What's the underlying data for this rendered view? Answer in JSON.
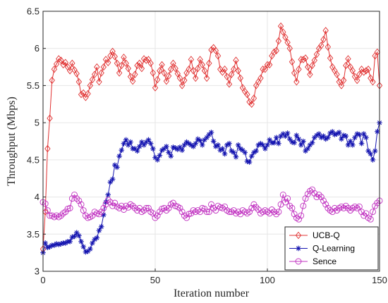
{
  "chart_data": {
    "type": "line",
    "title": "",
    "xlabel": "Iteration number",
    "ylabel": "Throughput (Mbps)",
    "xlim": [
      0,
      150
    ],
    "ylim": [
      3,
      6.5
    ],
    "xticks": [
      "0",
      "50",
      "100",
      "150"
    ],
    "yticks": [
      "3",
      "3.5",
      "4",
      "4.5",
      "5",
      "5.5",
      "6",
      "6.5"
    ],
    "legend_position": "bottom-right",
    "grid": true,
    "x": [
      0,
      1,
      2,
      3,
      4,
      5,
      6,
      7,
      8,
      9,
      10,
      11,
      12,
      13,
      14,
      15,
      16,
      17,
      18,
      19,
      20,
      21,
      22,
      23,
      24,
      25,
      26,
      27,
      28,
      29,
      30,
      31,
      32,
      33,
      34,
      35,
      36,
      37,
      38,
      39,
      40,
      41,
      42,
      43,
      44,
      45,
      46,
      47,
      48,
      49,
      50,
      51,
      52,
      53,
      54,
      55,
      56,
      57,
      58,
      59,
      60,
      61,
      62,
      63,
      64,
      65,
      66,
      67,
      68,
      69,
      70,
      71,
      72,
      73,
      74,
      75,
      76,
      77,
      78,
      79,
      80,
      81,
      82,
      83,
      84,
      85,
      86,
      87,
      88,
      89,
      90,
      91,
      92,
      93,
      94,
      95,
      96,
      97,
      98,
      99,
      100,
      101,
      102,
      103,
      104,
      105,
      106,
      107,
      108,
      109,
      110,
      111,
      112,
      113,
      114,
      115,
      116,
      117,
      118,
      119,
      120,
      121,
      122,
      123,
      124,
      125,
      126,
      127,
      128,
      129,
      130,
      131,
      132,
      133,
      134,
      135,
      136,
      137,
      138,
      139,
      140,
      141,
      142,
      143,
      144,
      145,
      146,
      147,
      148,
      149,
      150
    ],
    "series": [
      {
        "name": "UCB-Q",
        "color": "#e03030",
        "marker": "diamond",
        "values": [
          3.3,
          3.8,
          4.65,
          5.06,
          5.57,
          5.72,
          5.79,
          5.86,
          5.84,
          5.78,
          5.81,
          5.75,
          5.7,
          5.8,
          5.71,
          5.66,
          5.55,
          5.38,
          5.4,
          5.34,
          5.39,
          5.5,
          5.58,
          5.65,
          5.75,
          5.55,
          5.67,
          5.75,
          5.85,
          5.81,
          5.9,
          5.96,
          5.89,
          5.8,
          5.67,
          5.77,
          5.88,
          5.8,
          5.73,
          5.62,
          5.56,
          5.65,
          5.77,
          5.8,
          5.73,
          5.86,
          5.84,
          5.85,
          5.8,
          5.67,
          5.47,
          5.58,
          5.7,
          5.78,
          5.67,
          5.56,
          5.63,
          5.72,
          5.8,
          5.73,
          5.66,
          5.6,
          5.5,
          5.57,
          5.67,
          5.72,
          5.85,
          5.7,
          5.6,
          5.73,
          5.85,
          5.78,
          5.7,
          5.6,
          5.8,
          5.98,
          6.01,
          5.97,
          5.9,
          5.72,
          5.68,
          5.72,
          5.62,
          5.52,
          5.65,
          5.72,
          5.84,
          5.7,
          5.6,
          5.47,
          5.42,
          5.38,
          5.28,
          5.25,
          5.33,
          5.5,
          5.55,
          5.6,
          5.72,
          5.72,
          5.78,
          5.78,
          5.9,
          5.95,
          5.97,
          6.1,
          6.3,
          6.22,
          6.15,
          6.08,
          6.0,
          5.82,
          5.67,
          5.55,
          5.72,
          5.85,
          5.85,
          5.87,
          5.75,
          5.65,
          5.77,
          5.84,
          5.92,
          6.0,
          6.04,
          6.12,
          6.24,
          6.02,
          5.87,
          5.75,
          5.7,
          5.65,
          5.55,
          5.5,
          5.57,
          5.77,
          5.86,
          5.75,
          5.7,
          5.62,
          5.57,
          5.65,
          5.72,
          5.68,
          5.7,
          5.72,
          5.6,
          5.55,
          5.9,
          5.95,
          5.5
        ]
      },
      {
        "name": "Q-Learning",
        "color": "#1515b0",
        "marker": "star",
        "values": [
          3.25,
          3.38,
          3.32,
          3.33,
          3.35,
          3.35,
          3.37,
          3.36,
          3.37,
          3.38,
          3.38,
          3.4,
          3.4,
          3.46,
          3.47,
          3.52,
          3.48,
          3.4,
          3.33,
          3.26,
          3.27,
          3.3,
          3.38,
          3.43,
          3.45,
          3.55,
          3.6,
          3.76,
          3.93,
          4.03,
          4.2,
          4.24,
          4.43,
          4.4,
          4.55,
          4.63,
          4.72,
          4.77,
          4.7,
          4.74,
          4.65,
          4.65,
          4.62,
          4.68,
          4.74,
          4.7,
          4.74,
          4.77,
          4.72,
          4.65,
          4.53,
          4.5,
          4.56,
          4.63,
          4.65,
          4.68,
          4.6,
          4.55,
          4.67,
          4.66,
          4.64,
          4.67,
          4.63,
          4.7,
          4.74,
          4.72,
          4.7,
          4.68,
          4.72,
          4.78,
          4.76,
          4.7,
          4.77,
          4.8,
          4.84,
          4.87,
          4.75,
          4.68,
          4.7,
          4.63,
          4.65,
          4.58,
          4.7,
          4.72,
          4.62,
          4.6,
          4.54,
          4.7,
          4.65,
          4.63,
          4.6,
          4.48,
          4.47,
          4.55,
          4.6,
          4.62,
          4.7,
          4.72,
          4.7,
          4.65,
          4.7,
          4.77,
          4.73,
          4.73,
          4.8,
          4.72,
          4.82,
          4.85,
          4.82,
          4.86,
          4.78,
          4.74,
          4.73,
          4.83,
          4.78,
          4.7,
          4.75,
          4.62,
          4.65,
          4.7,
          4.73,
          4.8,
          4.83,
          4.85,
          4.8,
          4.82,
          4.78,
          4.8,
          4.86,
          4.88,
          4.84,
          4.85,
          4.87,
          4.78,
          4.83,
          4.82,
          4.7,
          4.75,
          4.7,
          4.8,
          4.85,
          4.84,
          4.72,
          4.85,
          4.8,
          4.62,
          4.58,
          4.5,
          4.62,
          4.88,
          5.0
        ]
      },
      {
        "name": "Sence",
        "color": "#c030c0",
        "marker": "circle",
        "values": [
          3.93,
          3.91,
          3.82,
          3.75,
          3.75,
          3.73,
          3.75,
          3.73,
          3.75,
          3.78,
          3.8,
          3.84,
          3.85,
          3.98,
          4.03,
          3.98,
          3.95,
          3.9,
          3.82,
          3.75,
          3.72,
          3.73,
          3.75,
          3.8,
          3.78,
          3.77,
          3.8,
          3.85,
          3.9,
          3.96,
          3.93,
          3.88,
          3.92,
          3.87,
          3.85,
          3.88,
          3.83,
          3.88,
          3.86,
          3.9,
          3.88,
          3.85,
          3.82,
          3.85,
          3.8,
          3.82,
          3.85,
          3.85,
          3.8,
          3.78,
          3.72,
          3.75,
          3.8,
          3.84,
          3.85,
          3.82,
          3.85,
          3.9,
          3.92,
          3.88,
          3.87,
          3.85,
          3.8,
          3.75,
          3.72,
          3.77,
          3.78,
          3.82,
          3.8,
          3.82,
          3.8,
          3.85,
          3.84,
          3.8,
          3.8,
          3.9,
          3.85,
          3.82,
          3.88,
          3.86,
          3.85,
          3.87,
          3.82,
          3.8,
          3.8,
          3.82,
          3.78,
          3.8,
          3.77,
          3.82,
          3.8,
          3.78,
          3.8,
          3.85,
          3.9,
          3.86,
          3.83,
          3.78,
          3.8,
          3.82,
          3.8,
          3.78,
          3.83,
          3.8,
          3.77,
          3.8,
          3.9,
          4.03,
          3.93,
          3.98,
          3.88,
          3.85,
          3.77,
          3.72,
          3.7,
          3.75,
          3.88,
          3.98,
          4.04,
          4.08,
          4.1,
          4.05,
          4.0,
          4.03,
          4.0,
          3.95,
          3.9,
          3.85,
          3.82,
          3.8,
          3.85,
          3.82,
          3.85,
          3.87,
          3.85,
          3.88,
          3.85,
          3.82,
          3.85,
          3.87,
          3.85,
          3.87,
          3.8,
          3.75,
          3.78,
          3.72,
          3.7,
          3.8,
          3.88,
          3.92,
          3.95
        ]
      }
    ]
  }
}
